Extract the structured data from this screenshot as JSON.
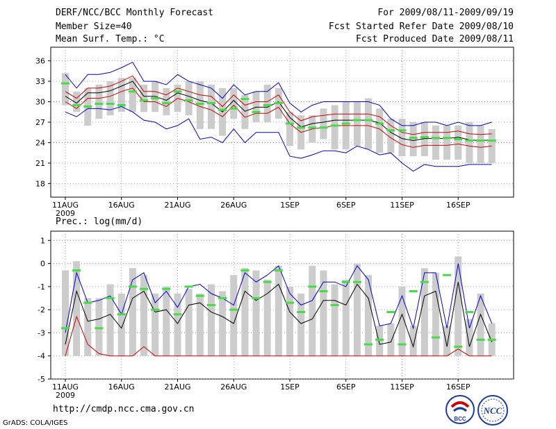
{
  "header": {
    "title": "DERF/NCC/BCC Monthly Forecast",
    "member": "Member Size=40",
    "variable": "Mean Surf. Temp.: °C",
    "period": "For 2009/08/11-2009/09/19",
    "started": "Fcst Started Refer Date 2009/08/10",
    "produced": "Fcst Produced Date 2009/08/11"
  },
  "footer": {
    "url": "http://cmdp.ncc.cma.gov.cn",
    "credit": "GrADS: COLA/IGES",
    "logo_left": "BCC",
    "logo_right": "NCC"
  },
  "chart_data": [
    {
      "type": "line",
      "title": "Mean Surf. Temp.: °C",
      "ylim": [
        16,
        38
      ],
      "yticks": [
        18,
        21,
        24,
        27,
        30,
        33,
        36
      ],
      "xticks": [
        "11AUG",
        "16AUG",
        "21AUG",
        "26AUG",
        "1SEP",
        "6SEP",
        "11SEP",
        "16SEP"
      ],
      "xyear": "2009",
      "grid": true,
      "series": [
        {
          "name": "max",
          "color": "#0000cc",
          "values": [
            34,
            32,
            34,
            34,
            34.3,
            35,
            35.8,
            33,
            33,
            32.5,
            34,
            33,
            32.5,
            32,
            30.5,
            32.5,
            31,
            31.5,
            31.5,
            32.8,
            29.8,
            28.5,
            29.5,
            30,
            30,
            30,
            30,
            30,
            29.5,
            27.5,
            26.5,
            26.5,
            27,
            27,
            26.5,
            27,
            26.5,
            26.5,
            27
          ]
        },
        {
          "name": "p90",
          "color": "#cc0000",
          "values": [
            31.5,
            30.5,
            32,
            32,
            32.3,
            33,
            33.8,
            31.5,
            31.5,
            31,
            32,
            31.5,
            31,
            30.8,
            29.3,
            31,
            29.5,
            30,
            30,
            31,
            28.5,
            27.2,
            27.8,
            28,
            28.2,
            28.2,
            28.2,
            28.2,
            27.8,
            26.5,
            25.5,
            25.2,
            25.5,
            25.5,
            25.5,
            25.7,
            25.3,
            25.2,
            25.3
          ]
        },
        {
          "name": "mean",
          "color": "#000000",
          "values": [
            30.8,
            29.8,
            31.3,
            31.3,
            31.6,
            32.3,
            33,
            30.8,
            30.8,
            30.2,
            31.3,
            30.8,
            30.2,
            29.8,
            28.5,
            30.2,
            28.6,
            29.2,
            29.2,
            30,
            27.7,
            26.3,
            26.8,
            27,
            27.3,
            27.3,
            27.3,
            27.3,
            26.9,
            25.5,
            24.6,
            24.3,
            24.6,
            24.6,
            24.6,
            24.8,
            24.4,
            24.3,
            24.4
          ]
        },
        {
          "name": "p10",
          "color": "#cc0000",
          "values": [
            30,
            29,
            30.5,
            30.5,
            30.8,
            31.5,
            32,
            30,
            30,
            29.3,
            30.5,
            30,
            29.3,
            28.8,
            27.8,
            29.5,
            27.7,
            28.3,
            28.3,
            29.2,
            26.8,
            25.5,
            26,
            26.2,
            26.5,
            26.5,
            26.5,
            26.5,
            26,
            24.7,
            23.7,
            23.3,
            23.6,
            23.6,
            23.6,
            23.8,
            23.5,
            23.3,
            23.5
          ]
        },
        {
          "name": "min",
          "color": "#0000cc",
          "values": [
            28.5,
            27.8,
            29,
            29,
            28.8,
            29.3,
            28.5,
            27.3,
            27,
            26,
            26.5,
            27.5,
            24.5,
            24.8,
            24,
            26,
            24,
            25.5,
            25.5,
            25.5,
            22,
            21.7,
            22.2,
            22.8,
            22.8,
            22.5,
            23.5,
            23,
            22.2,
            22.5,
            21,
            19.8,
            20.8,
            20.5,
            20.5,
            20.5,
            20.8,
            20.8,
            20.8
          ]
        }
      ],
      "bars": {
        "color": "#cccccc",
        "low": [
          29.5,
          28.5,
          26.5,
          27.5,
          28,
          28.5,
          28.5,
          28.5,
          28.5,
          28,
          28.5,
          28,
          26,
          26,
          25,
          27.5,
          26,
          27,
          27,
          27.5,
          23.5,
          23,
          24,
          24.5,
          23,
          23,
          23.5,
          23,
          22.5,
          22.5,
          22,
          22,
          22,
          21.5,
          21.5,
          21.5,
          21,
          21,
          21
        ],
        "high": [
          34.2,
          31.5,
          32,
          32.5,
          33,
          33.5,
          33.5,
          32.5,
          33,
          32,
          32.5,
          33,
          33,
          32.5,
          32,
          32,
          31,
          31.5,
          32.5,
          32,
          28.5,
          28,
          28,
          29,
          29.5,
          30,
          30,
          30.5,
          29,
          27.5,
          27.5,
          27,
          27,
          26.5,
          26.5,
          26.5,
          27,
          26.5,
          26
        ]
      },
      "observations": {
        "color": "#44dd44",
        "values": [
          32.7,
          29.5,
          29.3,
          29.7,
          29.7,
          29.5,
          31.5,
          30.2,
          30.5,
          29.8,
          31.5,
          30.2,
          29.7,
          29.8,
          28.8,
          29,
          30.4,
          28.5,
          29.5,
          29.8,
          26.8,
          26.2,
          26.2,
          26.2,
          26.5,
          26.8,
          27.3,
          27.3,
          26.8,
          25.8,
          25.8,
          24.7,
          24.8,
          24.7,
          24.7,
          24.5,
          24.3,
          24.3,
          24.3
        ]
      }
    },
    {
      "type": "line",
      "title": "Prec.: log(mm/d)",
      "ylim": [
        -5,
        1.4
      ],
      "yticks": [
        -5,
        -4,
        -3,
        -2,
        -1,
        0,
        1
      ],
      "xticks": [
        "11AUG",
        "16AUG",
        "21AUG",
        "26AUG",
        "1SEP",
        "6SEP",
        "11SEP",
        "16SEP"
      ],
      "xyear": "2009",
      "grid": true,
      "series": [
        {
          "name": "max",
          "color": "#0000cc",
          "values": [
            -3,
            -0.4,
            -1.7,
            -1.6,
            -1.4,
            -2.2,
            -0.7,
            -0.4,
            -1.7,
            -1.2,
            -1.9,
            -1,
            -0.9,
            -1.3,
            -1.5,
            -1.8,
            -0.4,
            -0.8,
            -0.5,
            -0.1,
            -1.3,
            -1.8,
            -1.6,
            -0.8,
            -0.8,
            -1,
            -0.1,
            -0.7,
            -2.7,
            -2.6,
            -1.4,
            -2.8,
            -0.4,
            -0.4,
            -2.8,
            0,
            -2.8,
            -1.4,
            -2.6
          ]
        },
        {
          "name": "mean",
          "color": "#000000",
          "values": [
            -3.5,
            -1.2,
            -2.5,
            -2.4,
            -2.2,
            -2.8,
            -1.5,
            -1.2,
            -2.1,
            -2,
            -2.6,
            -1.8,
            -1.7,
            -2.1,
            -2.3,
            -2.6,
            -1.2,
            -1.6,
            -1.3,
            -0.9,
            -2.1,
            -2.6,
            -2.4,
            -1.6,
            -1.6,
            -1.8,
            -0.9,
            -1.5,
            -3.5,
            -3.4,
            -2.2,
            -3.6,
            -1.4,
            -1.2,
            -3.6,
            -0.8,
            -3.6,
            -2.2,
            -3.4
          ]
        },
        {
          "name": "min",
          "color": "#cc0000",
          "values": [
            -4,
            -2.3,
            -3.5,
            -3.9,
            -4,
            -4,
            -4,
            -3.6,
            -4,
            -4,
            -4,
            -4,
            -4,
            -4,
            -4,
            -4,
            -4,
            -4,
            -4,
            -4,
            -4,
            -4,
            -4,
            -4,
            -4,
            -4,
            -4,
            -4,
            -4,
            -4,
            -4,
            -4,
            -4,
            -4,
            -4,
            -3.7,
            -4,
            -4,
            -4
          ]
        }
      ],
      "bars": {
        "color": "#cccccc",
        "low": [
          -4,
          -4,
          -4,
          -4,
          -4,
          -4,
          -4,
          -4,
          -4,
          -4,
          -4,
          -4,
          -4,
          -4,
          -4,
          -4,
          -4,
          -4,
          -4,
          -4,
          -4,
          -4,
          -4,
          -4,
          -4,
          -4,
          -4,
          -4,
          -4,
          -4,
          -4,
          -4,
          -4,
          -4,
          -4,
          -4,
          -4,
          -4,
          -4
        ],
        "high": [
          -0.3,
          0.1,
          -1.5,
          -1.5,
          -0.9,
          -1.3,
          -0.2,
          -0.5,
          -1.3,
          -1,
          -1.3,
          -1.1,
          -1.3,
          -0.9,
          -1.2,
          -0.5,
          -0.2,
          -0.3,
          -0.7,
          -0.1,
          -1,
          -1.3,
          -0.1,
          -0.3,
          -0.9,
          -0.7,
          0,
          -0.5,
          -2.7,
          -2.6,
          -1,
          -2.7,
          -0.2,
          -0.4,
          -2.7,
          0.3,
          -2.4,
          -1.3,
          -2.6
        ]
      },
      "observations": {
        "color": "#44dd44",
        "values": [
          -2.8,
          -0.3,
          -1.7,
          -2.8,
          -1.5,
          -2.2,
          -1,
          -1.1,
          -2,
          -1.1,
          -2.2,
          -1,
          -1.4,
          -1.8,
          -1.5,
          -2,
          -0.3,
          -1.5,
          -0.8,
          -0.3,
          -1.7,
          -2.1,
          -1,
          -1.2,
          -1.8,
          -0.8,
          -0.8,
          -3.5,
          -3.3,
          -2.1,
          -3.5,
          -1.2,
          -0.8,
          -3.2,
          -0.5,
          -3.6,
          -2.1,
          -3.3,
          -3.3
        ]
      }
    }
  ]
}
